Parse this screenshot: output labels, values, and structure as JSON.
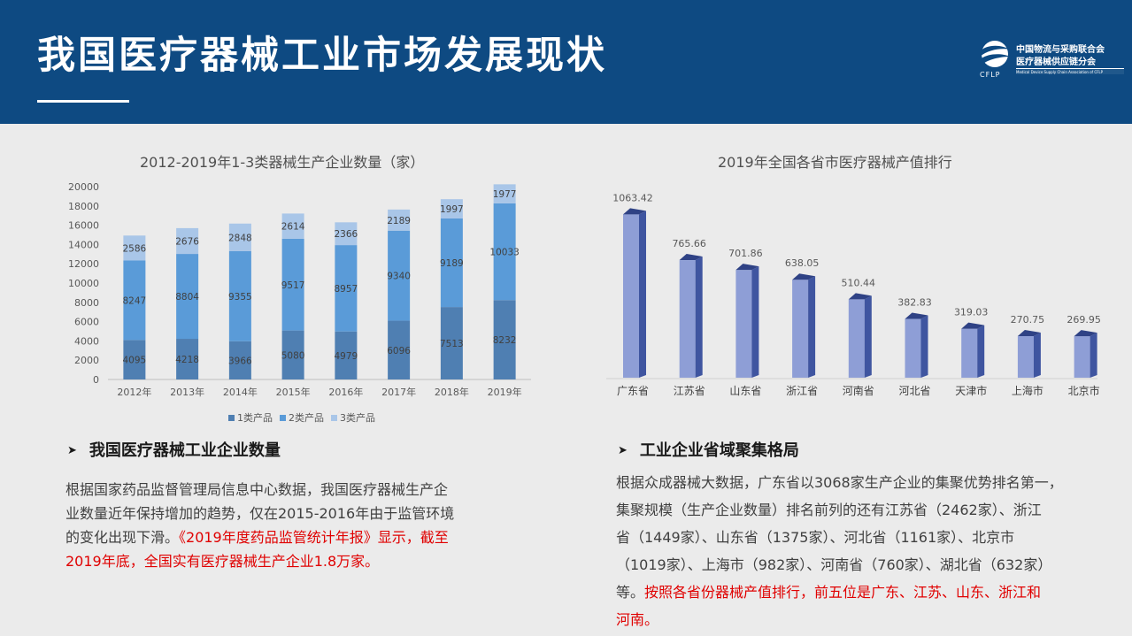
{
  "header": {
    "title": "我国医疗器械工业市场发展现状",
    "logo": {
      "org_line1": "中国物流与采购联合会",
      "org_line2": "医疗器械供应链分会",
      "abbr": "CFLP",
      "english": "Medical Device Supply Chain Association of CFLP"
    }
  },
  "colors": {
    "header_bg": "#0e4a82",
    "class1": "#4f7fb2",
    "class2": "#5a9bd8",
    "class3": "#a9c6e8",
    "province_bar": "#8e9ed6",
    "province_bar_dark": "#3f55a0",
    "highlight_text": "#e00000"
  },
  "chart_data": [
    {
      "type": "bar",
      "stacked": true,
      "title": "2012-2019年1-3类器械生产企业数量（家）",
      "categories": [
        "2012年",
        "2013年",
        "2014年",
        "2015年",
        "2016年",
        "2017年",
        "2018年",
        "2019年"
      ],
      "series": [
        {
          "name": "1类产品",
          "values": [
            4095,
            4218,
            3966,
            5080,
            4979,
            6096,
            7513,
            8232
          ]
        },
        {
          "name": "2类产品",
          "values": [
            8247,
            8804,
            9355,
            9517,
            8957,
            9340,
            9189,
            10033
          ]
        },
        {
          "name": "3类产品",
          "values": [
            2586,
            2676,
            2848,
            2614,
            2366,
            2189,
            1997,
            1977
          ]
        }
      ],
      "y_ticks": [
        "0",
        "2000",
        "4000",
        "6000",
        "8000",
        "10000",
        "12000",
        "14000",
        "16000",
        "18000",
        "20000"
      ],
      "ylim": [
        0,
        20000
      ],
      "grid": false,
      "legend_position": "bottom"
    },
    {
      "type": "bar",
      "title": "2019年全国各省市医疗器械产值排行",
      "categories": [
        "广东省",
        "江苏省",
        "山东省",
        "浙江省",
        "河南省",
        "河北省",
        "天津市",
        "上海市",
        "北京市"
      ],
      "values": [
        1063.42,
        765.66,
        701.86,
        638.05,
        510.44,
        382.83,
        319.03,
        270.75,
        269.95
      ],
      "value_labels": [
        "1063.42",
        "765.66",
        "701.86",
        "638.05",
        "510.44",
        "382.83",
        "319.03",
        "270.75",
        "269.95"
      ],
      "ylim": [
        0,
        1100
      ],
      "style": "3d-columns"
    }
  ],
  "left_section": {
    "heading": "我国医疗器械工业企业数量",
    "lines": [
      [
        {
          "text": "根据国家药品监督管理局信息中心数据，我国医疗器械生产企"
        }
      ],
      [
        {
          "text": "业数量近年保持增加的趋势，仅在2015-2016年由于监管环境"
        }
      ],
      [
        {
          "text": "的变化出现下滑。"
        },
        {
          "text": "《2019年度药品监管统计年报》显示，截至",
          "red": true
        }
      ],
      [
        {
          "text": "2019年底，全国实有医疗器械生产企业1.8万家。",
          "red": true
        }
      ]
    ]
  },
  "right_section": {
    "heading": "工业企业省域聚集格局",
    "lines": [
      [
        {
          "text": "根据众成器械大数据，广东省以3068家生产企业的集聚优势排名第一，"
        }
      ],
      [
        {
          "text": "集聚规模（生产企业数量）排名前列的还有江苏省（2462家）、浙江"
        }
      ],
      [
        {
          "text": "省（1449家）、山东省（1375家）、河北省（1161家）、北京市"
        }
      ],
      [
        {
          "text": "（1019家）、上海市（982家）、河南省（760家）、湖北省（632家）"
        }
      ],
      [
        {
          "text": "等。"
        },
        {
          "text": "按照各省份器械产值排行，前五位是广东、江苏、山东、浙江和",
          "red": true
        }
      ],
      [
        {
          "text": "河南。",
          "red": true
        }
      ]
    ]
  }
}
